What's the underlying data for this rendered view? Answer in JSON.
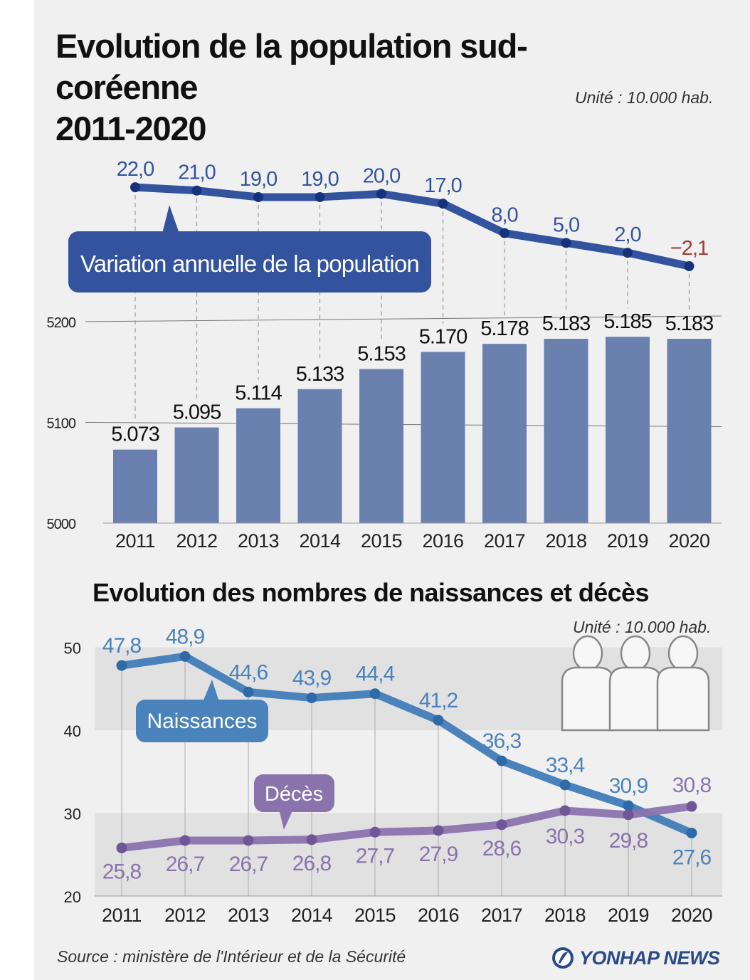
{
  "colors": {
    "variation_line": "#34539f",
    "variation_negative": "#a33a33",
    "bars": "#6a81b0",
    "births": "#4a82bc",
    "deaths": "#8a73ad",
    "band": "#e1e1e1",
    "panel": "#f0f0f0"
  },
  "chart_data": [
    {
      "type": "bar",
      "title": "Evolution de la population sud-coréenne 2011-2020",
      "unit": "Unité : 10.000 hab.",
      "categories": [
        "2011",
        "2012",
        "2013",
        "2014",
        "2015",
        "2016",
        "2017",
        "2018",
        "2019",
        "2020"
      ],
      "series": [
        {
          "name": "",
          "values": [
            5073,
            5095,
            5114,
            5133,
            5153,
            5170,
            5178,
            5183,
            5185,
            5183
          ],
          "value_labels": [
            "5.073",
            "5.095",
            "5.114",
            "5.133",
            "5.153",
            "5.170",
            "5.178",
            "5.183",
            "5.185",
            "5.183"
          ]
        }
      ],
      "ylim": [
        5000,
        5200
      ],
      "yticks": [
        "5000",
        "5100",
        "5200"
      ],
      "grid": false
    },
    {
      "type": "line",
      "categories": [
        "2011",
        "2012",
        "2013",
        "2014",
        "2015",
        "2016",
        "2017",
        "2018",
        "2019",
        "2020"
      ],
      "series": [
        {
          "name": "Variation annuelle de la population",
          "values": [
            22.0,
            21.0,
            19.0,
            19.0,
            20.0,
            17.0,
            8.0,
            5.0,
            2.0,
            -2.1
          ],
          "value_labels": [
            "22,0",
            "21,0",
            "19,0",
            "19,0",
            "20,0",
            "17,0",
            "8,0",
            "5,0",
            "2,0",
            "−2,1"
          ]
        }
      ],
      "axis_shown": false
    },
    {
      "type": "line",
      "title": "Evolution des nombres de naissances et décès",
      "unit": "Unité : 10.000 hab.",
      "categories": [
        "2011",
        "2012",
        "2013",
        "2014",
        "2015",
        "2016",
        "2017",
        "2018",
        "2019",
        "2020"
      ],
      "series": [
        {
          "name": "Naissances",
          "values": [
            47.8,
            48.9,
            44.6,
            43.9,
            44.4,
            41.2,
            36.3,
            33.4,
            30.9,
            27.6
          ],
          "value_labels": [
            "47,8",
            "48,9",
            "44,6",
            "43,9",
            "44,4",
            "41,2",
            "36,3",
            "33,4",
            "30,9",
            "27,6"
          ]
        },
        {
          "name": "Décès",
          "values": [
            25.8,
            26.7,
            26.7,
            26.8,
            27.7,
            27.9,
            28.6,
            30.3,
            29.8,
            30.8
          ],
          "value_labels": [
            "25,8",
            "26,7",
            "26,7",
            "26,8",
            "27,7",
            "27,9",
            "28,6",
            "30,3",
            "29,8",
            "30,8"
          ]
        }
      ],
      "ylim": [
        20,
        50
      ],
      "yticks": [
        "20",
        "30",
        "40",
        "50"
      ],
      "bands": [
        [
          20,
          30
        ],
        [
          40,
          50
        ]
      ]
    }
  ],
  "source": "Source : ministère de l'Intérieur et de la Sécurité",
  "brand": "YONHAP NEWS",
  "illustration_icon": "people-silhouettes-icon"
}
